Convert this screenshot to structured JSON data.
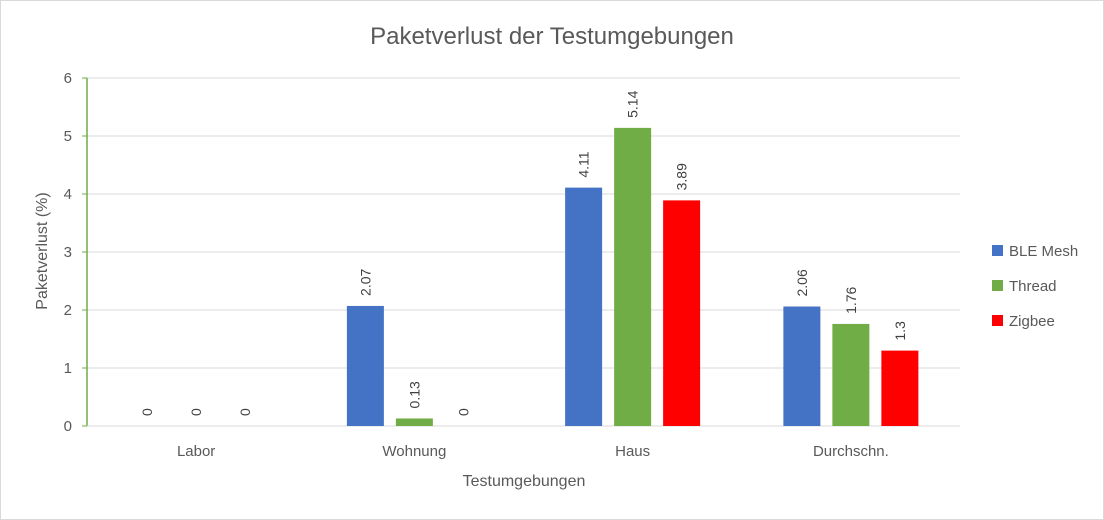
{
  "chart_data": {
    "type": "bar",
    "title": "Paketverlust der Testumgebungen",
    "xlabel": "Testumgebungen",
    "ylabel": "Paketverlust (%)",
    "ylim": [
      0,
      6
    ],
    "yticks": [
      "0",
      "1",
      "2",
      "3",
      "4",
      "5",
      "6"
    ],
    "grid": true,
    "legend_position": "right",
    "categories": [
      "Labor",
      "Wohnung",
      "Haus",
      "Durchschn."
    ],
    "series": [
      {
        "name": "BLE Mesh",
        "color": "#4472c4",
        "values": [
          0,
          2.07,
          4.11,
          2.06
        ],
        "labels": [
          "0",
          "2.07",
          "4.11",
          "2.06"
        ]
      },
      {
        "name": "Thread",
        "color": "#70ad47",
        "values": [
          0,
          0.13,
          5.14,
          1.76
        ],
        "labels": [
          "0",
          "0.13",
          "5.14",
          "1.76"
        ]
      },
      {
        "name": "Zigbee",
        "color": "#ff0000",
        "values": [
          0,
          0,
          3.89,
          1.3
        ],
        "labels": [
          "0",
          "0",
          "3.89",
          "1.3"
        ]
      }
    ]
  }
}
